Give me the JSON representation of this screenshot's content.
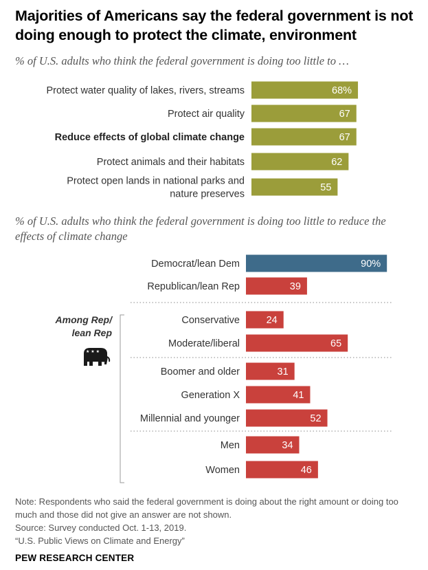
{
  "chart_data": [
    {
      "type": "bar",
      "orientation": "horizontal",
      "title": "Majorities of Americans say the federal government is not doing enough to protect the climate, environment",
      "subtitle": "% of U.S. adults who think the federal government is doing too little to …",
      "categories": [
        [
          "Protect water quality of lakes, rivers, streams"
        ],
        [
          "Protect air quality"
        ],
        [
          "Reduce effects of global climate change"
        ],
        [
          "Protect animals and their habitats"
        ],
        [
          "Protect open lands in national parks and",
          "nature preserves"
        ]
      ],
      "values": [
        68,
        67,
        67,
        62,
        55
      ],
      "value_labels": [
        "68%",
        "67",
        "67",
        "62",
        "55"
      ],
      "bold_category_index": 2,
      "xlim": [
        0,
        100
      ],
      "color": "#9b9d3a"
    },
    {
      "type": "bar",
      "orientation": "horizontal",
      "subtitle": "% of U.S. adults who think the federal government is doing too little to reduce the effects of climate change",
      "group_label": [
        "Among Rep/",
        "lean Rep"
      ],
      "categories": [
        "Democrat/lean Dem",
        "Republican/lean Rep",
        "Conservative",
        "Moderate/liberal",
        "Boomer and older",
        "Generation X",
        "Millennial and younger",
        "Men",
        "Women"
      ],
      "values": [
        90,
        39,
        24,
        65,
        31,
        41,
        52,
        34,
        46
      ],
      "value_labels": [
        "90%",
        "39",
        "24",
        "65",
        "31",
        "41",
        "52",
        "34",
        "46"
      ],
      "colors": [
        "#3e6b8a",
        "#c9413c",
        "#c9413c",
        "#c9413c",
        "#c9413c",
        "#c9413c",
        "#c9413c",
        "#c9413c",
        "#c9413c"
      ],
      "xlim": [
        0,
        100
      ]
    }
  ],
  "notes": {
    "note": "Note: Respondents who said the federal government is doing about the right amount or doing too much and those did not give an answer are not shown.",
    "source": "Source: Survey conducted Oct. 1-13, 2019.",
    "report": "“U.S. Public Views on Climate and Energy”"
  },
  "brand": "PEW RESEARCH CENTER"
}
